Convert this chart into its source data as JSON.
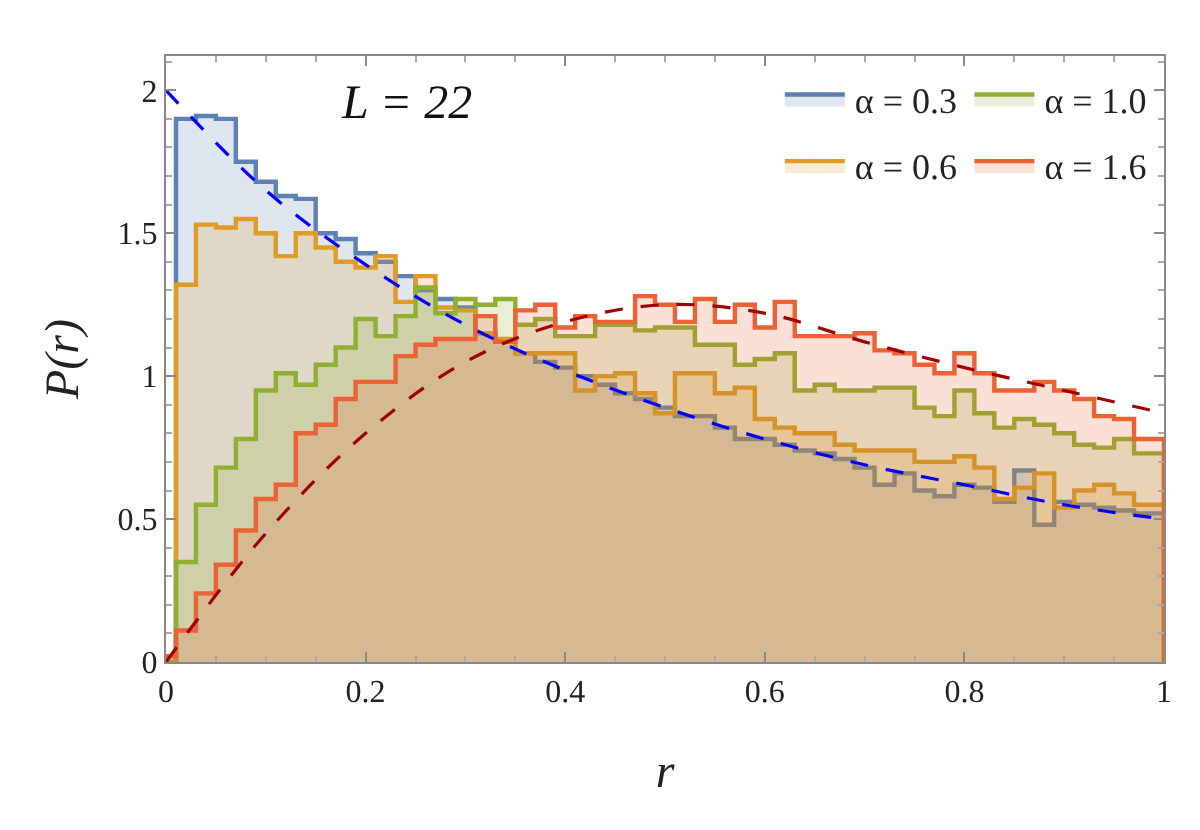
{
  "chart_data": {
    "type": "histogram",
    "xlabel": "r",
    "ylabel": "P(r)",
    "annotations": [
      "L = 22"
    ],
    "bins": [
      0,
      0.01,
      0.03,
      0.05,
      0.07,
      0.09,
      0.11,
      0.13,
      0.15,
      0.17,
      0.19,
      0.21,
      0.23,
      0.25,
      0.27,
      0.29,
      0.31,
      0.33,
      0.35,
      0.37,
      0.39,
      0.41,
      0.43,
      0.45,
      0.47,
      0.49,
      0.51,
      0.53,
      0.55,
      0.57,
      0.59,
      0.61,
      0.63,
      0.65,
      0.67,
      0.69,
      0.71,
      0.73,
      0.75,
      0.77,
      0.79,
      0.81,
      0.83,
      0.85,
      0.87,
      0.89,
      0.91,
      0.93,
      0.95,
      0.97,
      0.99,
      1.0
    ],
    "xlim": [
      0,
      1
    ],
    "xticks": [
      0,
      0.2,
      0.4,
      0.6,
      0.8,
      1
    ],
    "ylim": [
      0,
      2.12
    ],
    "yticks": [
      0,
      0.5,
      1,
      1.5,
      2
    ],
    "grid": false,
    "legend": "top right",
    "series": [
      {
        "name": "α = 0.3",
        "color": "#5e81b5",
        "values": [
          0,
          1.9,
          1.91,
          1.9,
          1.75,
          1.68,
          1.63,
          1.62,
          1.5,
          1.48,
          1.43,
          1.4,
          1.35,
          1.3,
          1.27,
          1.24,
          1.15,
          1.12,
          1.08,
          1.05,
          1.03,
          1.0,
          0.97,
          0.94,
          0.92,
          0.89,
          0.86,
          0.86,
          0.82,
          0.78,
          0.78,
          0.76,
          0.74,
          0.73,
          0.71,
          0.68,
          0.62,
          0.66,
          0.6,
          0.58,
          0.62,
          0.61,
          0.56,
          0.67,
          0.48,
          0.56,
          0.55,
          0.54,
          0.53,
          0.52,
          0.52
        ]
      },
      {
        "name": "α = 0.6",
        "color": "#e19c24",
        "values": [
          0,
          1.32,
          1.53,
          1.52,
          1.55,
          1.5,
          1.42,
          1.5,
          1.45,
          1.4,
          1.38,
          1.42,
          1.26,
          1.35,
          1.24,
          1.23,
          1.15,
          1.13,
          1.08,
          1.08,
          1.08,
          0.95,
          1.0,
          1.01,
          0.94,
          0.87,
          1.01,
          1.01,
          0.94,
          0.96,
          0.85,
          0.82,
          0.8,
          0.8,
          0.76,
          0.74,
          0.74,
          0.74,
          0.7,
          0.7,
          0.72,
          0.68,
          0.57,
          0.61,
          0.66,
          0.54,
          0.6,
          0.62,
          0.59,
          0.55,
          0.55
        ]
      },
      {
        "name": "α = 1.0",
        "color": "#8fb032",
        "values": [
          0,
          0.35,
          0.55,
          0.68,
          0.78,
          0.95,
          1.01,
          0.97,
          1.04,
          1.1,
          1.2,
          1.14,
          1.21,
          1.31,
          1.22,
          1.27,
          1.25,
          1.27,
          1.18,
          1.2,
          1.14,
          1.14,
          1.18,
          1.18,
          1.16,
          1.17,
          1.17,
          1.11,
          1.11,
          1.04,
          1.06,
          1.08,
          0.95,
          0.97,
          0.95,
          0.95,
          0.96,
          0.96,
          0.89,
          0.86,
          0.95,
          0.87,
          0.82,
          0.85,
          0.83,
          0.8,
          0.76,
          0.75,
          0.78,
          0.73,
          0.73
        ]
      },
      {
        "name": "α = 1.6",
        "color": "#eb6235",
        "values": [
          0.02,
          0.11,
          0.24,
          0.34,
          0.46,
          0.57,
          0.62,
          0.8,
          0.83,
          0.92,
          0.98,
          0.98,
          1.07,
          1.11,
          1.13,
          1.13,
          1.21,
          1.12,
          1.23,
          1.25,
          1.17,
          1.21,
          1.19,
          1.19,
          1.28,
          1.25,
          1.19,
          1.27,
          1.19,
          1.25,
          1.17,
          1.26,
          1.14,
          1.14,
          1.14,
          1.15,
          1.09,
          1.08,
          1.04,
          1.01,
          1.08,
          1.01,
          0.95,
          0.95,
          0.98,
          0.95,
          0.92,
          0.86,
          0.85,
          0.78,
          0.78
        ]
      },
      {
        "type": "line",
        "line_style": "dashed",
        "color": "#0000ff",
        "x": [
          0,
          0.1,
          0.2,
          0.3,
          0.4,
          0.5,
          0.6,
          0.7,
          0.8,
          0.9,
          1
        ],
        "values": [
          2,
          1.65,
          1.39,
          1.18,
          1.02,
          0.89,
          0.78,
          0.69,
          0.62,
          0.55,
          0.5
        ]
      },
      {
        "type": "line",
        "line_style": "dashed",
        "color": "#a00000",
        "x": [
          0,
          0.1,
          0.2,
          0.3,
          0.4,
          0.5,
          0.6,
          0.7,
          0.8,
          0.9,
          1
        ],
        "values": [
          0,
          0.45,
          0.8,
          1.05,
          1.19,
          1.25,
          1.22,
          1.12,
          1.03,
          0.95,
          0.87
        ]
      }
    ]
  }
}
